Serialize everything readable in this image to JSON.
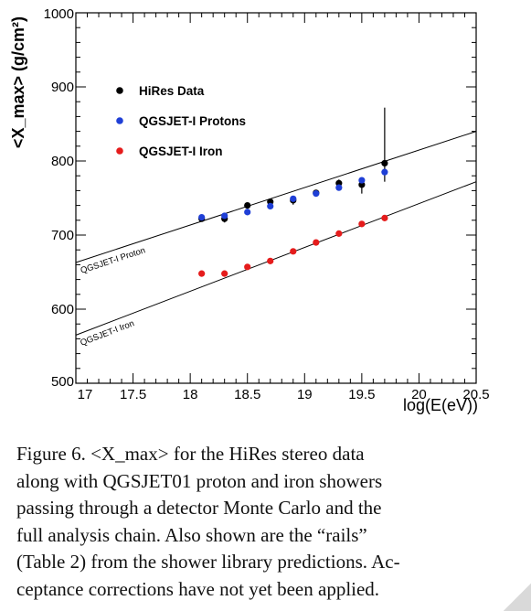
{
  "figure": {
    "caption_lines": [
      "Figure 6.  <X_max> for the HiRes stereo data",
      "along with QGSJET01 proton and iron showers",
      "passing through a detector Monte Carlo and the",
      "full analysis chain.  Also shown are the “rails”",
      "(Table 2) from the shower library predictions. Ac-",
      "ceptance corrections have not yet been applied."
    ]
  },
  "chart_data": {
    "type": "scatter",
    "ylabel": "<X_max> (g/cm²)",
    "xlabel": "log(E(eV))",
    "xlim": [
      17,
      20.5
    ],
    "ylim": [
      500,
      1000
    ],
    "x_ticks": [
      "17",
      "17.5",
      "18",
      "18.5",
      "19",
      "19.5",
      "20",
      "20.5"
    ],
    "y_ticks": [
      "500",
      "600",
      "700",
      "800",
      "900",
      "1000"
    ],
    "legend_position": "top-left",
    "series": [
      {
        "name": "HiRes Data",
        "color": "#000000",
        "x": [
          18.1,
          18.3,
          18.5,
          18.7,
          18.9,
          19.1,
          19.3,
          19.5,
          19.7
        ],
        "y": [
          722,
          722,
          740,
          745,
          747,
          757,
          770,
          768,
          797
        ],
        "yerr_low": [
          4,
          5,
          3,
          4,
          6,
          4,
          5,
          12,
          25
        ],
        "yerr_high": [
          4,
          5,
          3,
          4,
          6,
          4,
          5,
          5,
          75
        ]
      },
      {
        "name": "QGSJET-I Protons",
        "color": "#1f3fd6",
        "x": [
          18.1,
          18.3,
          18.5,
          18.7,
          18.9,
          19.1,
          19.3,
          19.5,
          19.7
        ],
        "y": [
          724,
          726,
          731,
          739,
          749,
          756,
          764,
          774,
          785
        ]
      },
      {
        "name": "QGSJET-I Iron",
        "color": "#e51c1c",
        "x": [
          18.1,
          18.3,
          18.5,
          18.7,
          18.9,
          19.1,
          19.3,
          19.5,
          19.7
        ],
        "y": [
          648,
          648,
          657,
          665,
          678,
          690,
          702,
          715,
          723
        ]
      }
    ],
    "rails": [
      {
        "label": "QGSJET-I Proton",
        "x": [
          17,
          20.5
        ],
        "y": [
          663,
          840
        ]
      },
      {
        "label": "QGSJET-I Iron",
        "x": [
          17,
          20.5
        ],
        "y": [
          565,
          772
        ]
      }
    ]
  }
}
